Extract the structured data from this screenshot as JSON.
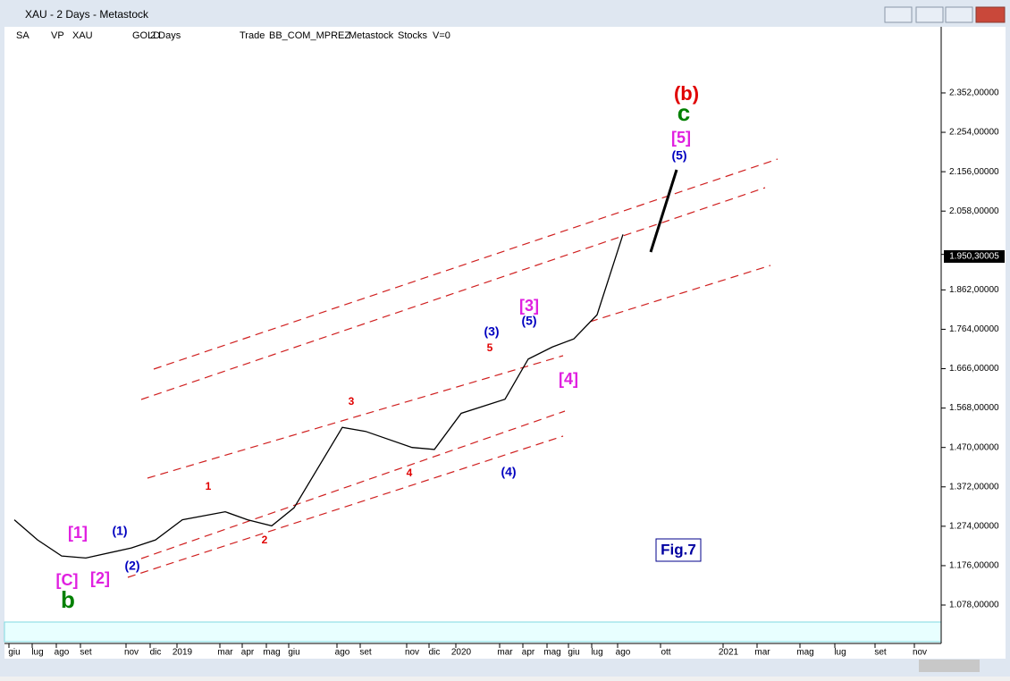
{
  "window": {
    "title": "XAU - 2 Days - Metastock"
  },
  "toolbar": {
    "items": [
      "SA",
      "VP",
      "XAU",
      "GOLD",
      "2 Days",
      "Trade",
      "BB_COM_MPREZ",
      "Metastock",
      "Stocks",
      "V=0"
    ]
  },
  "chart_data": {
    "type": "line",
    "categories": [
      "giu",
      "lug",
      "ago",
      "set",
      "nov",
      "dic",
      "2019",
      "mar",
      "apr",
      "mag",
      "giu",
      "ago",
      "set",
      "nov",
      "dic",
      "2020",
      "mar",
      "apr",
      "mag",
      "giu",
      "lug",
      "ago",
      "ott",
      "2021",
      "mar",
      "mag",
      "lug",
      "set",
      "nov"
    ],
    "series": [
      {
        "name": "XAU",
        "color": "#000000",
        "values": [
          1290,
          1240,
          1200,
          1195,
          1220,
          1240,
          1290,
          1310,
          1290,
          1275,
          1320,
          1520,
          1510,
          1470,
          1465,
          1555,
          1590,
          1690,
          1720,
          1740,
          1800,
          2000,
          null,
          null,
          null,
          null,
          null,
          null,
          null
        ]
      }
    ],
    "last_value": 1950.30005,
    "last_value_label": "1.950,30005",
    "ylim": [
      1038,
      2512
    ],
    "yticks": [
      {
        "value": 1078,
        "label": "1.078,00000"
      },
      {
        "value": 1176,
        "label": "1.176,00000"
      },
      {
        "value": 1274,
        "label": "1.274,00000"
      },
      {
        "value": 1372,
        "label": "1.372,00000"
      },
      {
        "value": 1470,
        "label": "1.470,00000"
      },
      {
        "value": 1568,
        "label": "1.568,00000"
      },
      {
        "value": 1666,
        "label": "1.666,00000"
      },
      {
        "value": 1764,
        "label": "1.764,00000"
      },
      {
        "value": 1862,
        "label": "1.862,00000"
      },
      {
        "value": 2058,
        "label": "2.058,00000"
      },
      {
        "value": 2156,
        "label": "2.156,00000"
      },
      {
        "value": 2254,
        "label": "2.254,00000"
      },
      {
        "value": 2352,
        "label": "2.352,00000"
      }
    ],
    "annotations": [
      {
        "text": "[C]",
        "color": "#e020e0"
      },
      {
        "text": "b",
        "color": "#008000"
      },
      {
        "text": "[1]",
        "color": "#e020e0"
      },
      {
        "text": "[2]",
        "color": "#e020e0"
      },
      {
        "text": "(1)",
        "color": "#0000c0"
      },
      {
        "text": "(2)",
        "color": "#0000c0"
      },
      {
        "text": "1",
        "color": "#e00000"
      },
      {
        "text": "2",
        "color": "#e00000"
      },
      {
        "text": "3",
        "color": "#e00000"
      },
      {
        "text": "4",
        "color": "#e00000"
      },
      {
        "text": "5",
        "color": "#e00000"
      },
      {
        "text": "(3)",
        "color": "#0000c0"
      },
      {
        "text": "(4)",
        "color": "#0000c0"
      },
      {
        "text": "[3]",
        "color": "#e020e0"
      },
      {
        "text": "(5)",
        "color": "#0000c0"
      },
      {
        "text": "[4]",
        "color": "#e020e0"
      },
      {
        "text": "(5)",
        "color": "#0000c0"
      },
      {
        "text": "[5]",
        "color": "#e020e0"
      },
      {
        "text": "c",
        "color": "#008000"
      },
      {
        "text": "(b)",
        "color": "#e00000"
      }
    ],
    "figure_label": "Fig.7"
  }
}
